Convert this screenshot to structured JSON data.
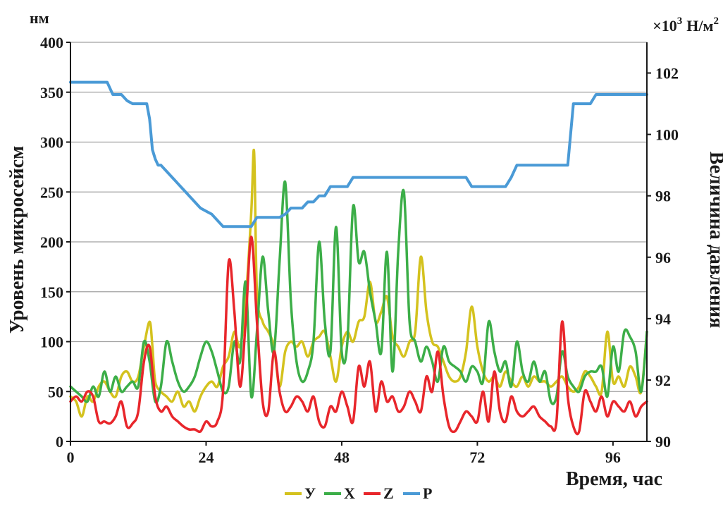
{
  "chart_data": {
    "type": "line",
    "xlabel": "Время, час",
    "ylabel": "Уровень микросейсм",
    "ylabel_unit": "нм",
    "y2label": "Величина давления",
    "y2label_unit_prefix": "×10",
    "y2label_unit_exp": "3",
    "y2label_unit": "Н/м",
    "y2label_unit_sup": "2",
    "xlim": [
      0,
      102
    ],
    "ylim": [
      0,
      400
    ],
    "y2lim": [
      90,
      103
    ],
    "xticks": [
      0,
      24,
      48,
      72,
      96
    ],
    "yticks": [
      0,
      50,
      100,
      150,
      200,
      250,
      300,
      350,
      400
    ],
    "y2ticks": [
      90,
      92,
      94,
      96,
      98,
      100,
      102
    ],
    "grid": true,
    "legend_position": "bottom",
    "series": [
      {
        "name": "У",
        "axis": "left",
        "color": "#d4c21e",
        "x": [
          0,
          1,
          2,
          3,
          4,
          5,
          6,
          7,
          8,
          9,
          10,
          11,
          12,
          13,
          14,
          14.5,
          15,
          16,
          17,
          18,
          19,
          20,
          21,
          22,
          23,
          24,
          25,
          26,
          27,
          28,
          29,
          30,
          31,
          32,
          32.5,
          33,
          34,
          35,
          36,
          37,
          38,
          39,
          40,
          41,
          42,
          43,
          44,
          45,
          46,
          47,
          48,
          49,
          50,
          51,
          52,
          53,
          54,
          55,
          56,
          57,
          58,
          59,
          60,
          61,
          62,
          63,
          64,
          65,
          66,
          67,
          68,
          69,
          70,
          71,
          72,
          73,
          74,
          75,
          76,
          77,
          78,
          79,
          80,
          81,
          82,
          83,
          84,
          85,
          86,
          87,
          88,
          89,
          90,
          91,
          92,
          93,
          94,
          95,
          96,
          97,
          98,
          99,
          100,
          101,
          102
        ],
        "values": [
          45,
          40,
          25,
          45,
          40,
          55,
          60,
          50,
          45,
          65,
          70,
          60,
          65,
          95,
          120,
          95,
          60,
          50,
          45,
          40,
          50,
          35,
          40,
          30,
          45,
          55,
          60,
          55,
          75,
          85,
          110,
          95,
          140,
          230,
          290,
          150,
          120,
          110,
          95,
          55,
          90,
          100,
          95,
          100,
          85,
          100,
          105,
          110,
          85,
          60,
          95,
          110,
          100,
          120,
          125,
          160,
          120,
          130,
          145,
          105,
          95,
          85,
          100,
          110,
          185,
          130,
          100,
          95,
          80,
          65,
          60,
          65,
          90,
          135,
          95,
          70,
          60,
          65,
          55,
          70,
          60,
          55,
          65,
          55,
          65,
          60,
          60,
          55,
          60,
          65,
          55,
          50,
          55,
          70,
          65,
          55,
          50,
          110,
          60,
          65,
          55,
          75,
          65,
          50,
          110
        ]
      },
      {
        "name": "Х",
        "axis": "left",
        "color": "#3cae48",
        "x": [
          0,
          1,
          2,
          3,
          4,
          5,
          6,
          7,
          8,
          9,
          10,
          11,
          12,
          13,
          14,
          15,
          16,
          17,
          18,
          19,
          20,
          21,
          22,
          23,
          24,
          25,
          26,
          27,
          28,
          29,
          30,
          31,
          32,
          33,
          34,
          35,
          36,
          37,
          38,
          39,
          40,
          41,
          42,
          43,
          44,
          45,
          46,
          47,
          48,
          49,
          50,
          51,
          52,
          53,
          54,
          55,
          56,
          57,
          58,
          59,
          60,
          61,
          62,
          63,
          64,
          65,
          66,
          67,
          68,
          69,
          70,
          71,
          72,
          73,
          74,
          75,
          76,
          77,
          78,
          79,
          80,
          81,
          82,
          83,
          84,
          85,
          86,
          87,
          88,
          89,
          90,
          91,
          92,
          93,
          94,
          95,
          96,
          97,
          98,
          99,
          100,
          101,
          102
        ],
        "values": [
          55,
          50,
          45,
          40,
          55,
          45,
          70,
          50,
          65,
          50,
          55,
          60,
          55,
          100,
          80,
          40,
          55,
          100,
          80,
          60,
          50,
          55,
          65,
          85,
          100,
          90,
          70,
          50,
          55,
          100,
          80,
          160,
          45,
          110,
          185,
          130,
          90,
          180,
          260,
          140,
          80,
          60,
          70,
          100,
          200,
          120,
          90,
          215,
          90,
          100,
          235,
          180,
          190,
          150,
          120,
          90,
          190,
          70,
          190,
          250,
          120,
          100,
          80,
          95,
          80,
          60,
          95,
          80,
          75,
          70,
          60,
          75,
          70,
          60,
          120,
          90,
          70,
          80,
          55,
          100,
          70,
          60,
          80,
          60,
          70,
          40,
          45,
          90,
          65,
          55,
          50,
          65,
          70,
          70,
          75,
          45,
          95,
          70,
          110,
          105,
          90,
          50,
          110
        ]
      },
      {
        "name": "Z",
        "axis": "left",
        "color": "#e8262b",
        "x": [
          0,
          1,
          2,
          3,
          4,
          5,
          6,
          7,
          8,
          9,
          10,
          11,
          12,
          13,
          14,
          15,
          16,
          17,
          18,
          19,
          20,
          21,
          22,
          23,
          24,
          25,
          26,
          27,
          28,
          29,
          30,
          31,
          32,
          33,
          34,
          35,
          36,
          37,
          38,
          39,
          40,
          41,
          42,
          43,
          44,
          45,
          46,
          47,
          48,
          49,
          50,
          51,
          52,
          53,
          54,
          55,
          56,
          57,
          58,
          59,
          60,
          61,
          62,
          63,
          64,
          65,
          66,
          67,
          68,
          69,
          70,
          71,
          72,
          73,
          74,
          75,
          76,
          77,
          78,
          79,
          80,
          81,
          82,
          83,
          84,
          85,
          86,
          87,
          88,
          89,
          90,
          91,
          92,
          93,
          94,
          95,
          96,
          97,
          98,
          99,
          100,
          101,
          102
        ],
        "values": [
          40,
          45,
          40,
          50,
          45,
          20,
          20,
          18,
          25,
          40,
          15,
          18,
          30,
          80,
          95,
          45,
          30,
          35,
          25,
          20,
          15,
          12,
          12,
          10,
          20,
          15,
          20,
          50,
          180,
          130,
          55,
          120,
          205,
          120,
          40,
          30,
          90,
          50,
          30,
          35,
          45,
          40,
          30,
          45,
          20,
          15,
          35,
          30,
          50,
          35,
          20,
          75,
          55,
          80,
          30,
          60,
          40,
          45,
          30,
          35,
          50,
          40,
          30,
          65,
          50,
          90,
          45,
          15,
          10,
          20,
          30,
          25,
          20,
          50,
          20,
          70,
          30,
          20,
          45,
          30,
          25,
          30,
          35,
          25,
          20,
          15,
          20,
          120,
          45,
          15,
          10,
          50,
          40,
          30,
          45,
          25,
          40,
          35,
          30,
          40,
          25,
          35,
          40
        ]
      },
      {
        "name": "Р",
        "axis": "right",
        "color": "#4a9ad6",
        "x": [
          0,
          6.5,
          7,
          7.5,
          9,
          10,
          11,
          13.5,
          14,
          14.5,
          15,
          15.5,
          16,
          17,
          18,
          19,
          20,
          21,
          22,
          23,
          24,
          25,
          26,
          27,
          28,
          29,
          31,
          32,
          33,
          35,
          36,
          37,
          38,
          39,
          40,
          41,
          42,
          43,
          44,
          45,
          46,
          47,
          48,
          49,
          50,
          51,
          52,
          53,
          60,
          65,
          69,
          70,
          71,
          72,
          74,
          75,
          76,
          77,
          78,
          79,
          80,
          81,
          82,
          83,
          84,
          85,
          86,
          87,
          88,
          89,
          90,
          91,
          92,
          93,
          94,
          95,
          96,
          97,
          98,
          99,
          100,
          101,
          102
        ],
        "values": [
          101.7,
          101.7,
          101.5,
          101.3,
          101.3,
          101.1,
          101.0,
          101.0,
          100.5,
          99.5,
          99.2,
          99.0,
          99.0,
          98.8,
          98.6,
          98.4,
          98.2,
          98.0,
          97.8,
          97.6,
          97.5,
          97.4,
          97.2,
          97.0,
          97.0,
          97.0,
          97.0,
          97.0,
          97.3,
          97.3,
          97.3,
          97.3,
          97.4,
          97.6,
          97.6,
          97.6,
          97.8,
          97.8,
          98.0,
          98.0,
          98.3,
          98.3,
          98.3,
          98.3,
          98.6,
          98.6,
          98.6,
          98.6,
          98.6,
          98.6,
          98.6,
          98.6,
          98.3,
          98.3,
          98.3,
          98.3,
          98.3,
          98.3,
          98.6,
          99.0,
          99.0,
          99.0,
          99.0,
          99.0,
          99.0,
          99.0,
          99.0,
          99.0,
          99.0,
          101.0,
          101.0,
          101.0,
          101.0,
          101.3,
          101.3,
          101.3,
          101.3,
          101.3,
          101.3,
          101.3,
          101.3,
          101.3,
          101.3
        ]
      }
    ]
  }
}
